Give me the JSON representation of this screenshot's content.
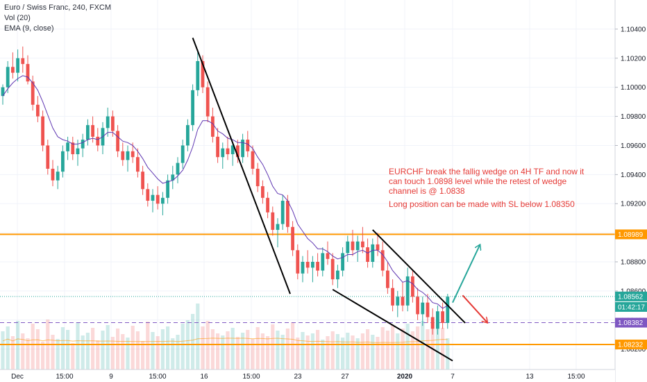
{
  "header": {
    "symbol_line": "Euro / Swiss Franc, 240, FXCM",
    "indicator_vol": "Vol (20)",
    "indicator_ema": "EMA (9, close)"
  },
  "annotation": {
    "text": "EURCHF break the fallig wedge on 4H TF and now it can touch 1.0898 level while the retest of wedge channel is @ 1.0838",
    "text2": "Long position can be made with SL below 1.08350"
  },
  "chart_data": {
    "type": "candlestick",
    "symbol": "EURCHF",
    "timeframe": "240",
    "x_ticks": [
      "Dec",
      "15:00",
      "9",
      "15:00",
      "16",
      "15:00",
      "23",
      "27",
      "2020",
      "7",
      "13",
      "15:00"
    ],
    "y_ticks": [
      1.082,
      1.084,
      1.086,
      1.088,
      1.09,
      1.092,
      1.094,
      1.096,
      1.098,
      1.1,
      1.102,
      1.104
    ],
    "ylim": [
      1.0806,
      1.106
    ],
    "price_labels": [
      {
        "text": "1.08989",
        "value": 1.08989,
        "color": "#ff9800"
      },
      {
        "text": "1.08562",
        "value": 1.08562,
        "color": "#26a69a"
      },
      {
        "text": "01:42:17",
        "value": 1.0849,
        "color": "#26a69a"
      },
      {
        "text": "1.08382",
        "value": 1.08382,
        "color": "#7e57c2"
      },
      {
        "text": "1.08232",
        "value": 1.08232,
        "color": "#ff9800"
      }
    ],
    "horizontal_levels": [
      {
        "value": 1.08989,
        "color": "#ff9800",
        "style": "solid"
      },
      {
        "value": 1.08232,
        "color": "#ff9800",
        "style": "solid"
      },
      {
        "value": 1.08382,
        "color": "#7e57c2",
        "style": "dashed"
      },
      {
        "value": 1.08562,
        "color": "#26a69a",
        "style": "dotted"
      }
    ],
    "candles_ohlc": [
      [
        1.0994,
        1.1002,
        1.0988,
        1.1
      ],
      [
        1.1,
        1.1018,
        1.0996,
        1.1014
      ],
      [
        1.1014,
        1.1024,
        1.1006,
        1.101
      ],
      [
        1.101,
        1.1026,
        1.1004,
        1.102
      ],
      [
        1.102,
        1.1028,
        1.101,
        1.1016
      ],
      [
        1.1016,
        1.1022,
        1.1002,
        1.1004
      ],
      [
        1.1004,
        1.1008,
        1.0984,
        1.0988
      ],
      [
        1.0988,
        1.0994,
        1.0976,
        1.098
      ],
      [
        1.098,
        1.0984,
        1.0956,
        1.096
      ],
      [
        1.096,
        1.0964,
        1.094,
        1.0944
      ],
      [
        1.0944,
        1.095,
        1.0932,
        1.0936
      ],
      [
        1.0936,
        1.0946,
        1.093,
        1.0942
      ],
      [
        1.0942,
        1.096,
        1.0938,
        1.0956
      ],
      [
        1.0956,
        1.0966,
        1.095,
        1.0962
      ],
      [
        1.0962,
        1.0966,
        1.095,
        1.0954
      ],
      [
        1.0954,
        1.0964,
        1.0946,
        1.0958
      ],
      [
        1.0958,
        1.0968,
        1.0952,
        1.0964
      ],
      [
        1.0964,
        1.0978,
        1.096,
        1.0974
      ],
      [
        1.0974,
        1.098,
        1.0962,
        1.0966
      ],
      [
        1.0966,
        1.0972,
        1.0956,
        1.096
      ],
      [
        1.096,
        1.0976,
        1.0954,
        1.0972
      ],
      [
        1.0972,
        1.0986,
        1.0966,
        1.098
      ],
      [
        1.098,
        1.0984,
        1.0966,
        1.097
      ],
      [
        1.097,
        1.0974,
        1.0952,
        1.0956
      ],
      [
        1.0956,
        1.0962,
        1.0946,
        1.095
      ],
      [
        1.095,
        1.096,
        1.0942,
        1.0956
      ],
      [
        1.0956,
        1.0962,
        1.0948,
        1.0952
      ],
      [
        1.0952,
        1.0958,
        1.0938,
        1.0942
      ],
      [
        1.0942,
        1.0946,
        1.0926,
        1.093
      ],
      [
        1.093,
        1.0934,
        1.0918,
        1.0922
      ],
      [
        1.0922,
        1.093,
        1.0914,
        1.0926
      ],
      [
        1.0926,
        1.0932,
        1.0916,
        1.092
      ],
      [
        1.092,
        1.0928,
        1.0912,
        1.0924
      ],
      [
        1.0924,
        1.094,
        1.092,
        1.0936
      ],
      [
        1.0936,
        1.0946,
        1.093,
        1.094
      ],
      [
        1.094,
        1.0952,
        1.0934,
        1.0948
      ],
      [
        1.0948,
        1.0964,
        1.0944,
        1.096
      ],
      [
        1.096,
        1.0978,
        1.0956,
        1.0974
      ],
      [
        1.0974,
        1.1002,
        1.097,
        1.0998
      ],
      [
        1.0998,
        1.1026,
        1.0994,
        1.1018
      ],
      [
        1.1018,
        1.1022,
        1.0996,
        1.1
      ],
      [
        1.1,
        1.1004,
        1.0976,
        1.098
      ],
      [
        1.098,
        1.0986,
        1.0962,
        1.0966
      ],
      [
        1.0966,
        1.0972,
        1.0948,
        1.0952
      ],
      [
        1.0952,
        1.0962,
        1.0944,
        1.0958
      ],
      [
        1.0958,
        1.0966,
        1.095,
        1.0954
      ],
      [
        1.0954,
        1.0962,
        1.0946,
        1.096
      ],
      [
        1.096,
        1.0964,
        1.0948,
        1.0952
      ],
      [
        1.0952,
        1.0968,
        1.0948,
        1.0964
      ],
      [
        1.0964,
        1.097,
        1.0952,
        1.0956
      ],
      [
        1.0956,
        1.096,
        1.094,
        1.0944
      ],
      [
        1.0944,
        1.0948,
        1.0928,
        1.0932
      ],
      [
        1.0932,
        1.0936,
        1.092,
        1.0924
      ],
      [
        1.0924,
        1.0928,
        1.091,
        1.0914
      ],
      [
        1.0914,
        1.0918,
        1.0898,
        1.0902
      ],
      [
        1.0902,
        1.091,
        1.089,
        1.0906
      ],
      [
        1.0906,
        1.0926,
        1.0902,
        1.0922
      ],
      [
        1.0922,
        1.0926,
        1.09,
        1.0904
      ],
      [
        1.0904,
        1.0908,
        1.0884,
        1.0888
      ],
      [
        1.0888,
        1.0892,
        1.0868,
        1.0872
      ],
      [
        1.0872,
        1.0884,
        1.0866,
        1.088
      ],
      [
        1.088,
        1.0888,
        1.0872,
        1.0876
      ],
      [
        1.0876,
        1.0884,
        1.0866,
        1.088
      ],
      [
        1.088,
        1.0886,
        1.087,
        1.0874
      ],
      [
        1.0874,
        1.089,
        1.087,
        1.0886
      ],
      [
        1.0886,
        1.0894,
        1.0878,
        1.0882
      ],
      [
        1.0882,
        1.0886,
        1.0864,
        1.0868
      ],
      [
        1.0868,
        1.0878,
        1.0862,
        1.0874
      ],
      [
        1.0874,
        1.089,
        1.087,
        1.0886
      ],
      [
        1.0886,
        1.0898,
        1.088,
        1.0894
      ],
      [
        1.0894,
        1.0902,
        1.0884,
        1.0888
      ],
      [
        1.0888,
        1.0898,
        1.088,
        1.0894
      ],
      [
        1.0894,
        1.0904,
        1.0886,
        1.089
      ],
      [
        1.089,
        1.0896,
        1.0876,
        1.088
      ],
      [
        1.088,
        1.0896,
        1.0876,
        1.0892
      ],
      [
        1.0892,
        1.09,
        1.0884,
        1.0888
      ],
      [
        1.0888,
        1.0894,
        1.087,
        1.0874
      ],
      [
        1.0874,
        1.088,
        1.0858,
        1.0862
      ],
      [
        1.0862,
        1.0868,
        1.0846,
        1.085
      ],
      [
        1.085,
        1.086,
        1.0842,
        1.0856
      ],
      [
        1.0856,
        1.0866,
        1.0846,
        1.085
      ],
      [
        1.085,
        1.0876,
        1.0846,
        1.087
      ],
      [
        1.087,
        1.0874,
        1.0852,
        1.0856
      ],
      [
        1.0856,
        1.0862,
        1.084,
        1.0844
      ],
      [
        1.0844,
        1.0856,
        1.0836,
        1.0852
      ],
      [
        1.0852,
        1.0858,
        1.0838,
        1.0842
      ],
      [
        1.0842,
        1.0848,
        1.083,
        1.0834
      ],
      [
        1.0834,
        1.085,
        1.083,
        1.0846
      ],
      [
        1.0846,
        1.0852,
        1.0834,
        1.0838
      ],
      [
        1.0838,
        1.0858,
        1.0834,
        1.0856
      ]
    ],
    "ema_9": [
      1.0994,
      1.0999,
      1.1003,
      1.1006,
      1.1008,
      1.1007,
      1.1003,
      1.0998,
      1.099,
      1.0981,
      1.0972,
      1.0966,
      1.0964,
      1.0963,
      1.0961,
      1.0961,
      1.0962,
      1.0964,
      1.0965,
      1.0964,
      1.0966,
      1.0969,
      1.0969,
      1.0966,
      1.0963,
      1.0962,
      1.096,
      1.0956,
      1.0951,
      1.0945,
      1.0941,
      1.0937,
      1.0934,
      1.0935,
      1.0936,
      1.0939,
      1.0943,
      1.095,
      1.0959,
      1.0971,
      1.0977,
      1.0977,
      1.0975,
      1.097,
      1.0968,
      1.0965,
      1.0964,
      1.0962,
      1.0962,
      1.0961,
      1.0958,
      1.0952,
      1.0947,
      1.094,
      1.0932,
      1.0927,
      1.0926,
      1.0922,
      1.0915,
      1.0906,
      1.0901,
      1.0896,
      1.0893,
      1.0889,
      1.0889,
      1.0887,
      1.0884,
      1.0882,
      1.0883,
      1.0885,
      1.0885,
      1.0887,
      1.0888,
      1.0886,
      1.0888,
      1.0888,
      1.0885,
      1.088,
      1.0874,
      1.087,
      1.0866,
      1.0867,
      1.0865,
      1.0861,
      1.0859,
      1.0856,
      1.0852,
      1.0851,
      1.0848,
      1.085
    ],
    "volume_levels": [
      0.55,
      0.62,
      0.48,
      0.7,
      0.52,
      0.45,
      0.66,
      0.58,
      0.4,
      0.72,
      0.5,
      0.44,
      0.61,
      0.57,
      0.38,
      0.68,
      0.49,
      0.53,
      0.6,
      0.42,
      0.56,
      0.64,
      0.47,
      0.59,
      0.51,
      0.46,
      0.63,
      0.55,
      0.41,
      0.69,
      0.54,
      0.48,
      0.58,
      0.62,
      0.45,
      0.5,
      0.66,
      0.71,
      0.8,
      0.95,
      0.62,
      0.7,
      0.58,
      0.52,
      0.49,
      0.55,
      0.6,
      0.47,
      0.53,
      0.57,
      0.44,
      0.61,
      0.52,
      0.48,
      0.65,
      0.56,
      0.5,
      0.59,
      0.68,
      0.46,
      0.54,
      0.49,
      0.52,
      0.57,
      0.43,
      0.48,
      0.55,
      0.51,
      0.46,
      0.53,
      0.49,
      0.45,
      0.52,
      0.58,
      0.5,
      0.47,
      0.61,
      0.56,
      0.64,
      0.52,
      0.59,
      0.66,
      0.55,
      0.62,
      0.7,
      0.58,
      0.67,
      0.72,
      0.6,
      0.45
    ],
    "drawings": [
      {
        "type": "trendline",
        "from": [
          38,
          1.1034
        ],
        "to": [
          57.5,
          1.0858
        ],
        "color": "#000000"
      },
      {
        "type": "trendline",
        "from": [
          66,
          1.0861
        ],
        "to": [
          90,
          1.0812
        ],
        "color": "#000000"
      },
      {
        "type": "trendline",
        "from": [
          74,
          1.0902
        ],
        "to": [
          92.5,
          1.0838
        ],
        "color": "#000000"
      },
      {
        "type": "arrow",
        "from": [
          90,
          1.0852
        ],
        "to": [
          95.5,
          1.0892
        ],
        "color": "#26a69a"
      },
      {
        "type": "arrow",
        "from": [
          92,
          1.0857
        ],
        "to": [
          97,
          1.0838
        ],
        "color": "#e53935"
      }
    ],
    "colors": {
      "up": "#26a69a",
      "down": "#ef5350",
      "ema": "#5e35b1",
      "volume_ma": "#ff9800"
    }
  }
}
